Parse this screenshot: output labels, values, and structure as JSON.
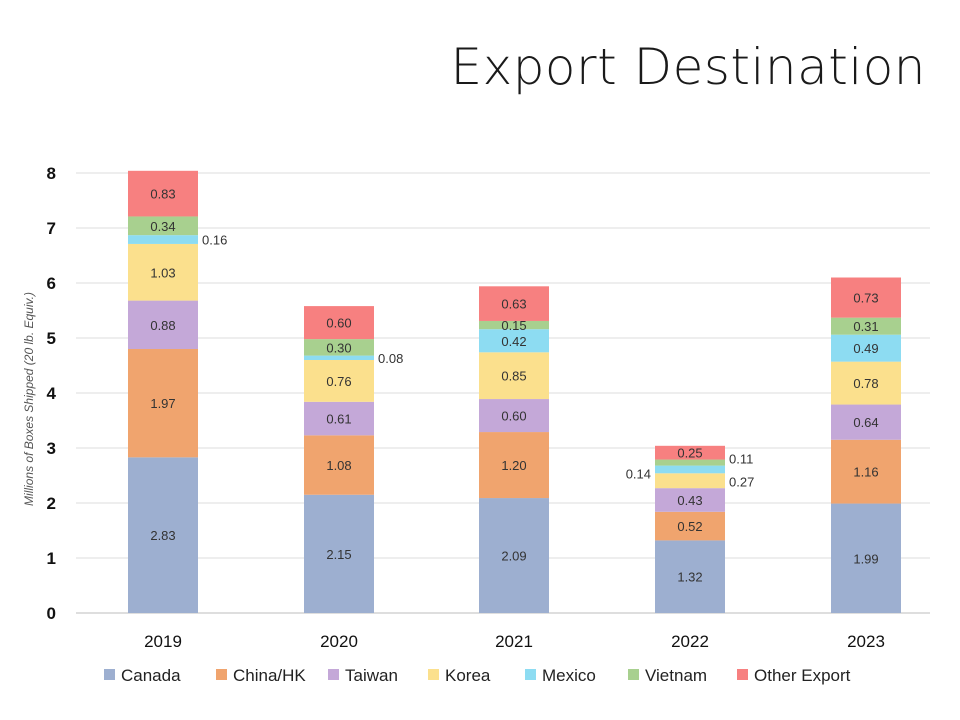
{
  "title": "Export Destination",
  "chart_data": {
    "type": "bar",
    "stacked": true,
    "categories": [
      "2019",
      "2020",
      "2021",
      "2022",
      "2023"
    ],
    "ylabel": "Millions of Boxes Shipped (20 lb. Equiv.)",
    "ylim": [
      0,
      8
    ],
    "yticks": [
      0,
      1,
      2,
      3,
      4,
      5,
      6,
      7,
      8
    ],
    "grid": true,
    "legend": "bottom",
    "series": [
      {
        "name": "Canada",
        "color": "#9dafd0",
        "values": [
          2.83,
          2.15,
          2.09,
          1.32,
          1.99
        ]
      },
      {
        "name": "China/HK",
        "color": "#f0a46e",
        "values": [
          1.97,
          1.08,
          1.2,
          0.52,
          1.16
        ]
      },
      {
        "name": "Taiwan",
        "color": "#c4a8d8",
        "values": [
          0.88,
          0.61,
          0.6,
          0.43,
          0.64
        ]
      },
      {
        "name": "Korea",
        "color": "#fbe08d",
        "values": [
          1.03,
          0.76,
          0.85,
          0.27,
          0.78
        ]
      },
      {
        "name": "Mexico",
        "color": "#8ddcf2",
        "values": [
          0.16,
          0.08,
          0.42,
          0.14,
          0.49
        ]
      },
      {
        "name": "Vietnam",
        "color": "#a8d08f",
        "values": [
          0.34,
          0.3,
          0.15,
          0.11,
          0.31
        ]
      },
      {
        "name": "Other Export",
        "color": "#f78080",
        "values": [
          0.83,
          0.6,
          0.63,
          0.25,
          0.73
        ]
      }
    ]
  }
}
